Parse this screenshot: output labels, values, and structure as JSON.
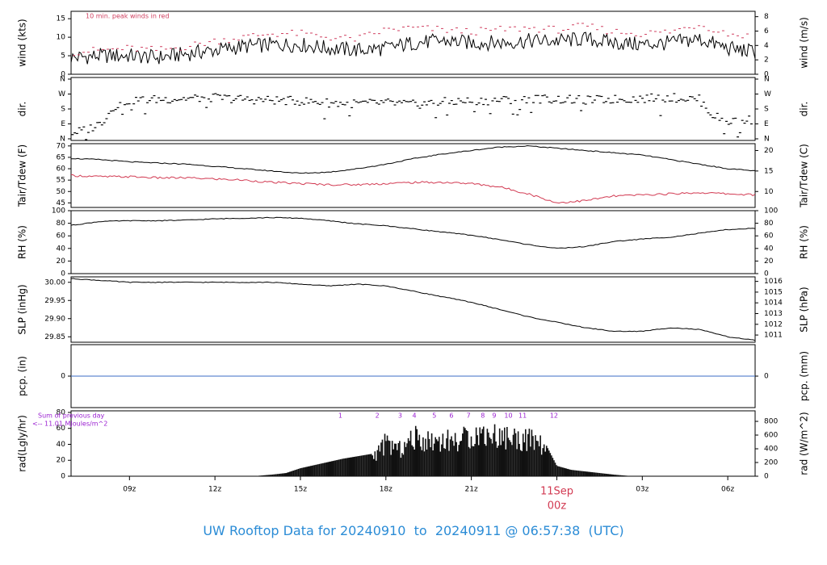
{
  "colors": {
    "frame": "#000000",
    "peak": "#d04060",
    "dew": "#d23a52",
    "pcp": "#3b6cc4",
    "rad_note": "#9a1fd1",
    "date": "#d23a52",
    "footer": "#2b8cd6"
  },
  "footer": {
    "prefix": "UW Rooftop Data for ",
    "start": "20240910",
    "to": "  to  ",
    "end": "20240911",
    "at": " @ ",
    "time": "06:57:38",
    "tz": "  (UTC)"
  },
  "x_axis": {
    "ticks": [
      "09z",
      "12z",
      "15z",
      "18z",
      "21z",
      "03z",
      "06z"
    ],
    "tick_hours": [
      9,
      12,
      15,
      18,
      21,
      27,
      30
    ],
    "range_hours": [
      6.95,
      30.96
    ],
    "date_label": "11Sep",
    "date_sub": "00z",
    "date_hour": 24
  },
  "chart_data": [
    {
      "type": "line",
      "panel": "wind",
      "ylabel_left": "wind (kts)",
      "ylabel_right": "wind (m/s)",
      "ylim": [
        0,
        17
      ],
      "yticks_left": [
        0,
        5,
        10,
        15
      ],
      "yticks_right": [
        0,
        2,
        4,
        6,
        8
      ],
      "annotation": "10 min. peak winds in red",
      "x": [
        7,
        8,
        9,
        10,
        11,
        12,
        13,
        14,
        15,
        16,
        17,
        18,
        19,
        20,
        21,
        22,
        23,
        24,
        25,
        26,
        27,
        28,
        29,
        30,
        31
      ],
      "series": [
        {
          "values": [
            4.5,
            5.0,
            5.0,
            4.5,
            5.5,
            6.5,
            7.5,
            8.0,
            8.0,
            7.0,
            6.5,
            7.0,
            8.5,
            9.0,
            8.5,
            8.5,
            9.0,
            9.0,
            9.5,
            8.5,
            8.0,
            8.5,
            9.5,
            7.0,
            6.0
          ]
        },
        {
          "values": [
            6,
            6.5,
            7,
            6.5,
            7.5,
            9,
            10,
            11,
            11,
            10,
            9.5,
            12,
            12.5,
            12,
            11.5,
            12,
            12.5,
            12,
            13,
            11.5,
            11,
            11.5,
            13.5,
            11,
            10
          ]
        }
      ]
    },
    {
      "type": "scatter",
      "panel": "dir",
      "ylabel_left": "dir.",
      "ylabel_right": "dir.",
      "yticks_left": [
        "N",
        "E",
        "S",
        "W",
        "N"
      ],
      "yticks_right": [
        "N",
        "E",
        "S",
        "W",
        "N"
      ],
      "ylim": [
        0,
        360
      ],
      "x": [
        7,
        7.5,
        8,
        8.5,
        9,
        10,
        11,
        12,
        13,
        14,
        15,
        16,
        17,
        18,
        19,
        20,
        21,
        22,
        23,
        24,
        25,
        26,
        27,
        28,
        29,
        29.5,
        30,
        31
      ],
      "values": [
        45,
        60,
        100,
        200,
        230,
        235,
        240,
        245,
        235,
        230,
        225,
        215,
        210,
        215,
        205,
        220,
        225,
        230,
        240,
        235,
        230,
        235,
        240,
        245,
        235,
        140,
        110,
        120
      ]
    },
    {
      "type": "line",
      "panel": "temp",
      "ylabel_left": "Tair/Tdew (F)",
      "ylabel_right": "Tair/Tdew (C)",
      "ylim": [
        43,
        71
      ],
      "yticks_left": [
        45,
        50,
        55,
        60,
        65,
        70
      ],
      "yticks_right": [
        10,
        15,
        20
      ],
      "x": [
        7,
        8,
        9,
        10,
        11,
        12,
        13,
        14,
        15,
        16,
        17,
        18,
        19,
        20,
        21,
        22,
        23,
        24,
        25,
        26,
        27,
        28,
        29,
        30,
        31
      ],
      "series": [
        {
          "values": [
            64.5,
            64,
            63,
            62.5,
            62,
            61,
            60,
            59,
            58,
            58.5,
            60,
            62,
            64.5,
            66.5,
            68,
            69.5,
            70,
            69,
            68,
            67,
            66,
            64,
            62,
            60,
            59
          ]
        },
        {
          "values": [
            57,
            56.5,
            56.5,
            56,
            56,
            55.5,
            55,
            54,
            53.5,
            53,
            53,
            53.5,
            54,
            54,
            53.5,
            52,
            49,
            45,
            46,
            48,
            48.5,
            49,
            49.5,
            49,
            48.5
          ]
        }
      ]
    },
    {
      "type": "line",
      "panel": "rh",
      "ylabel_left": "RH (%)",
      "ylabel_right": "RH (%)",
      "ylim": [
        0,
        100
      ],
      "yticks_left": [
        0,
        20,
        40,
        60,
        80,
        100
      ],
      "yticks_right": [
        0,
        20,
        40,
        60,
        80,
        100
      ],
      "x": [
        7,
        8,
        9,
        10,
        11,
        12,
        13,
        14,
        15,
        16,
        17,
        18,
        19,
        20,
        21,
        22,
        23,
        24,
        25,
        26,
        27,
        28,
        29,
        30,
        31
      ],
      "values": [
        77,
        83,
        84,
        84,
        85,
        87,
        88,
        89,
        88,
        84,
        79,
        76,
        71,
        66,
        61,
        54,
        46,
        40,
        43,
        51,
        55,
        58,
        64,
        70,
        72
      ]
    },
    {
      "type": "line",
      "panel": "slp",
      "ylabel_left": "SLP (inHg)",
      "ylabel_right": "SLP (hPa)",
      "ylim": [
        29.835,
        30.015
      ],
      "yticks_left": [
        29.85,
        29.9,
        29.95,
        30.0
      ],
      "yticks_left_labels": [
        "29.85",
        "29.90",
        "29.95",
        "30.00"
      ],
      "yticks_right": [
        1011,
        1012,
        1013,
        1014,
        1015,
        1016
      ],
      "x": [
        7,
        8,
        9,
        10,
        11,
        12,
        13,
        14,
        15,
        16,
        17,
        18,
        19,
        20,
        21,
        22,
        23,
        24,
        25,
        26,
        27,
        28,
        29,
        30,
        31
      ],
      "values": [
        30.01,
        30.005,
        30.0,
        30.0,
        30.0,
        30.0,
        30.0,
        30.0,
        29.995,
        29.99,
        29.995,
        29.99,
        29.975,
        29.96,
        29.945,
        29.925,
        29.905,
        29.89,
        29.875,
        29.865,
        29.865,
        29.875,
        29.87,
        29.85,
        29.84
      ]
    },
    {
      "type": "line",
      "panel": "pcp",
      "ylabel_left": "pcp. (in)",
      "ylabel_right": "pcp. (mm)",
      "ylim": [
        -1,
        1
      ],
      "yticks_left": [
        0
      ],
      "yticks_right": [
        0
      ],
      "x": [
        6.95,
        30.96
      ],
      "values": [
        0,
        0
      ]
    },
    {
      "type": "bar",
      "panel": "rad",
      "ylabel_left": "rad(Lgly/hr)",
      "ylabel_right": "rad (W/m^2)",
      "ylim": [
        0,
        82
      ],
      "yticks_left": [
        0,
        20,
        40,
        60,
        80
      ],
      "yticks_right": [
        0,
        200,
        400,
        600,
        800
      ],
      "note_line1": "Sum of previous day",
      "note_line2": "<-- 11.01 MJoules/m^2",
      "hour_marks": [
        "1",
        "2",
        "3",
        "4",
        "5",
        "6",
        "7",
        "8",
        "9",
        "10",
        "11",
        "12"
      ],
      "hour_mark_x": [
        16.4,
        17.7,
        18.5,
        19.0,
        19.7,
        20.3,
        20.9,
        21.4,
        21.8,
        22.3,
        22.8,
        23.9
      ],
      "x": [
        13.5,
        14,
        14.5,
        15,
        15.5,
        16,
        16.5,
        17,
        17.5,
        18,
        18.5,
        19,
        19.5,
        20,
        20.5,
        21,
        21.5,
        22,
        22.5,
        23,
        23.5,
        24,
        24.5,
        25,
        25.5,
        26,
        26.5
      ],
      "values": [
        0.5,
        2,
        4,
        10,
        14,
        18,
        22,
        25,
        28,
        50,
        40,
        58,
        54,
        55,
        53,
        62,
        65,
        60,
        58,
        55,
        48,
        13,
        8,
        6,
        4,
        2,
        0.5
      ]
    }
  ]
}
